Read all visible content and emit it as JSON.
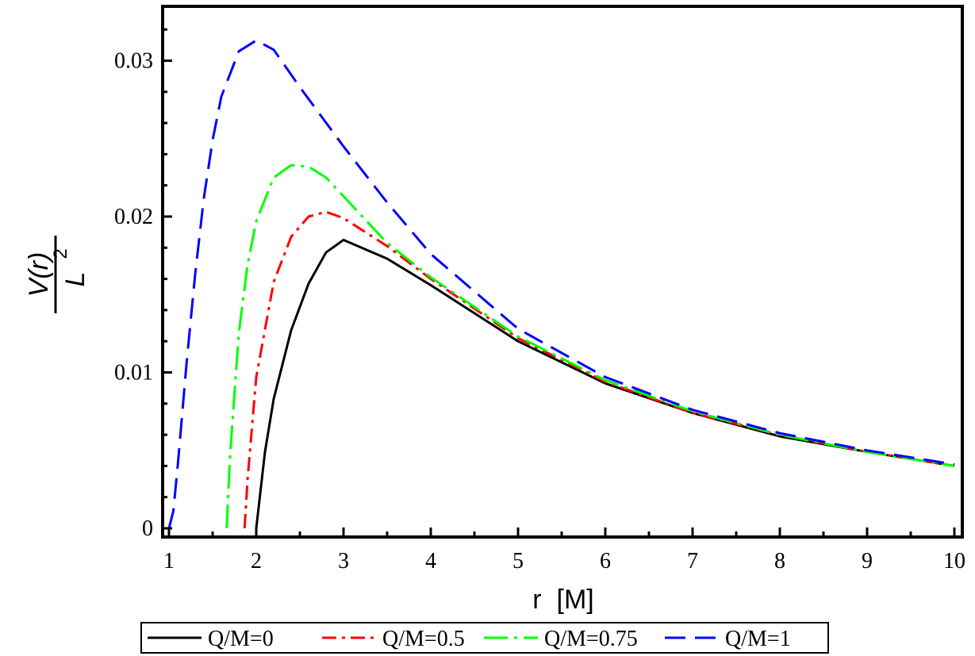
{
  "chart_data": {
    "type": "line",
    "xlabel": "r  [M]",
    "ylabel": {
      "numerator": "V(r)",
      "denominator": "L",
      "exponent": "2"
    },
    "xlim": [
      1,
      10
    ],
    "ylim": [
      0,
      0.0335
    ],
    "xticks": [
      "1",
      "2",
      "3",
      "4",
      "5",
      "6",
      "7",
      "8",
      "9",
      "10"
    ],
    "yticks": [
      "0",
      "0.01",
      "0.02",
      "0.03"
    ],
    "legend_position": "bottom",
    "grid": false,
    "series": [
      {
        "name": "Q/M=0",
        "color": "#000000",
        "dash": "solid",
        "x": [
          2.0,
          2.1,
          2.2,
          2.4,
          2.6,
          2.8,
          3.0,
          3.5,
          4.0,
          5.0,
          6.0,
          7.0,
          8.0,
          9.0,
          10.0
        ],
        "y": [
          0.0,
          0.0049,
          0.0083,
          0.0127,
          0.0157,
          0.0177,
          0.0185,
          0.0173,
          0.0156,
          0.012,
          0.0093,
          0.0074,
          0.0059,
          0.0049,
          0.004
        ]
      },
      {
        "name": "Q/M=0.5",
        "color": "#ff0000",
        "dash": "dashdot",
        "x": [
          1.866,
          1.9,
          2.0,
          2.2,
          2.4,
          2.6,
          2.8,
          3.0,
          3.5,
          4.0,
          5.0,
          6.0,
          7.0,
          8.0,
          9.0,
          10.0
        ],
        "y": [
          0.0,
          0.0031,
          0.0097,
          0.0158,
          0.0187,
          0.02,
          0.0203,
          0.0199,
          0.0181,
          0.016,
          0.0122,
          0.0094,
          0.0074,
          0.006,
          0.0049,
          0.004
        ]
      },
      {
        "name": "Q/M=0.75",
        "color": "#00ff00",
        "dash": "longdashdot",
        "x": [
          1.661,
          1.7,
          1.8,
          1.9,
          2.0,
          2.2,
          2.4,
          2.6,
          2.8,
          3.0,
          3.5,
          4.0,
          5.0,
          6.0,
          7.0,
          8.0,
          9.0,
          10.0
        ],
        "y": [
          0.0,
          0.0047,
          0.0125,
          0.0169,
          0.0197,
          0.0225,
          0.0233,
          0.0232,
          0.0225,
          0.0213,
          0.0183,
          0.0161,
          0.0123,
          0.0095,
          0.0075,
          0.006,
          0.0049,
          0.004
        ]
      },
      {
        "name": "Q/M=1",
        "color": "#0000ff",
        "dash": "dashed",
        "x": [
          1.0,
          1.05,
          1.1,
          1.2,
          1.3,
          1.4,
          1.5,
          1.6,
          1.8,
          2.0,
          2.2,
          2.5,
          3.0,
          3.5,
          4.0,
          5.0,
          6.0,
          7.0,
          8.0,
          9.0,
          10.0
        ],
        "y": [
          0.0,
          0.0011,
          0.004,
          0.0105,
          0.0163,
          0.0212,
          0.0249,
          0.0277,
          0.0306,
          0.0313,
          0.0307,
          0.0283,
          0.0245,
          0.0209,
          0.0176,
          0.0128,
          0.0097,
          0.0076,
          0.0061,
          0.005,
          0.0041
        ]
      }
    ]
  }
}
